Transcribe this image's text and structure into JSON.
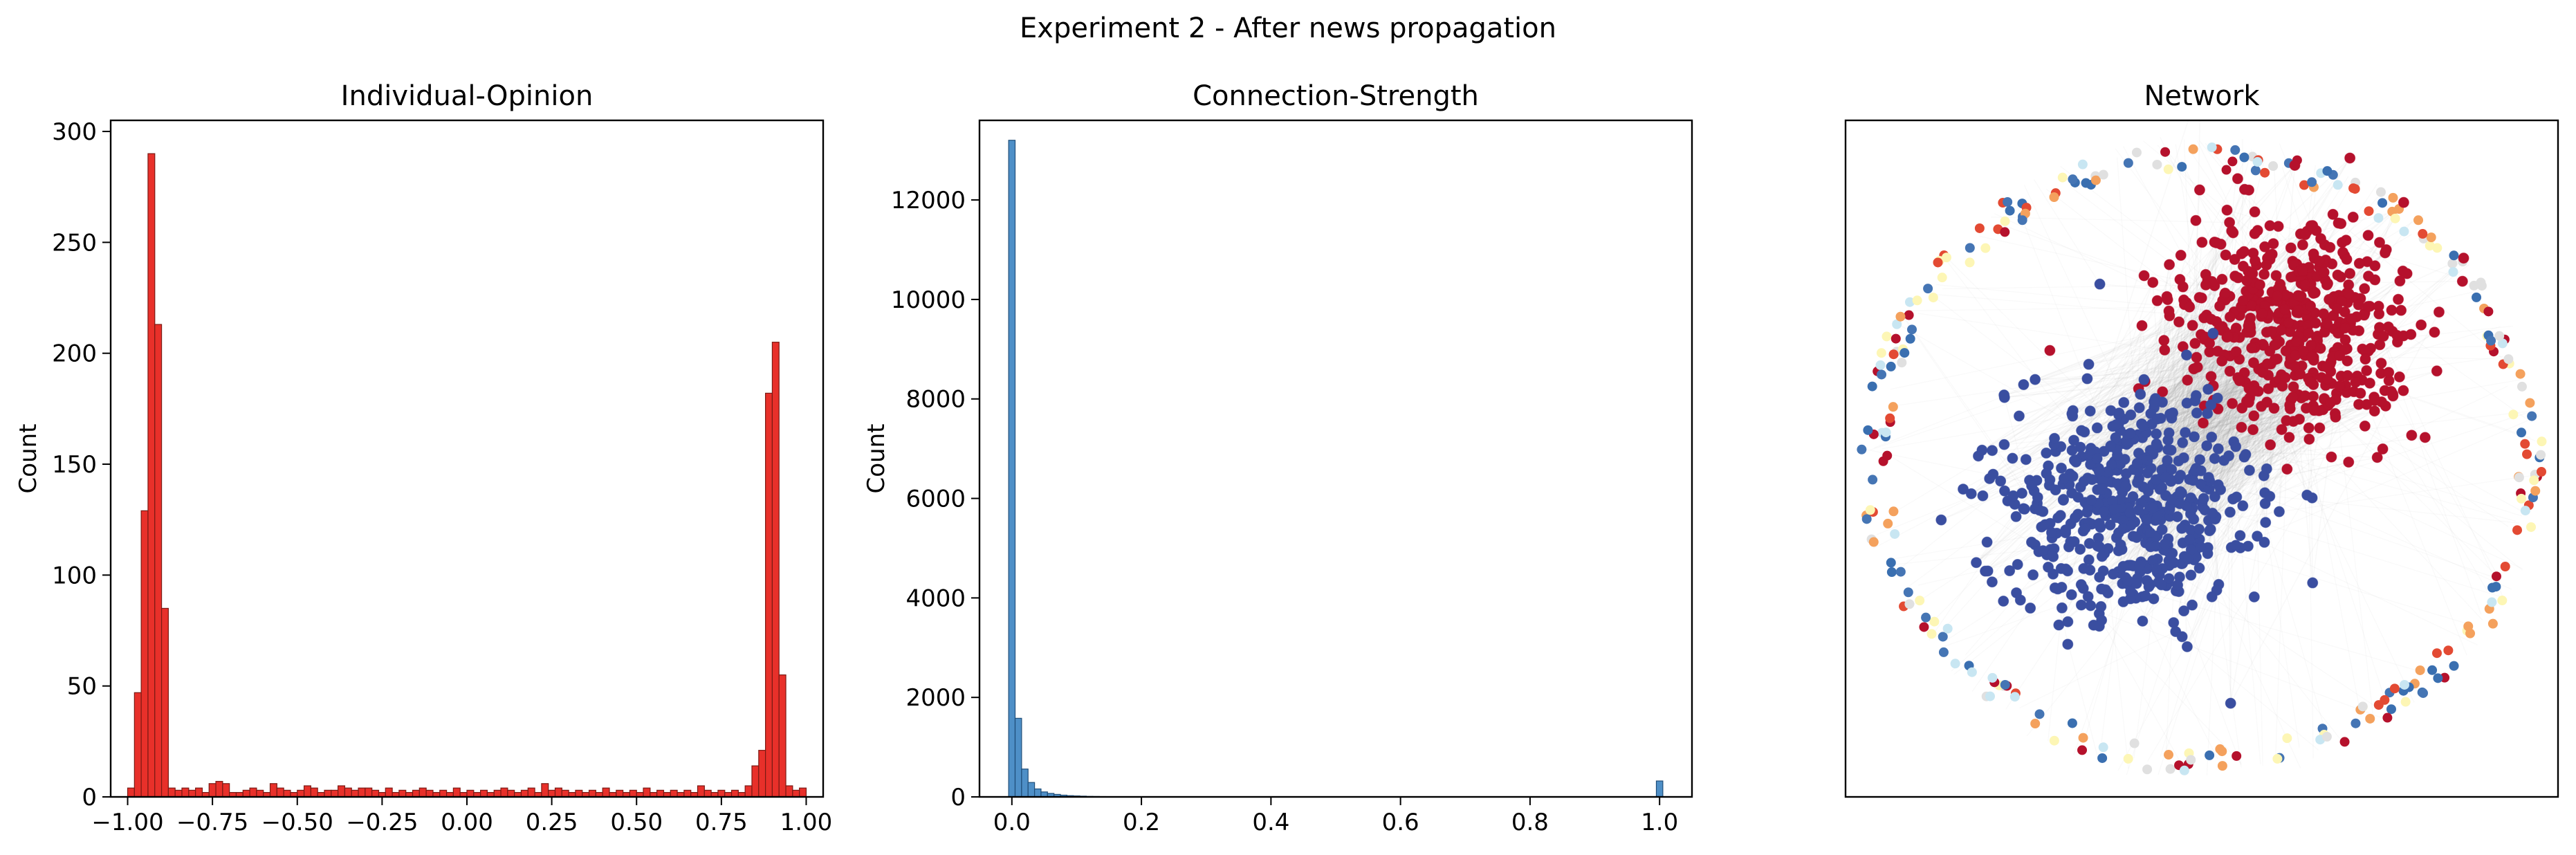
{
  "figure": {
    "suptitle": "Experiment 2 - After news propagation"
  },
  "chart_data": [
    {
      "type": "histogram",
      "title": "Individual-Opinion",
      "xlabel": "",
      "ylabel": "Count",
      "xlim": [
        -1.05,
        1.05
      ],
      "ylim": [
        0,
        305
      ],
      "xticks": [
        -1.0,
        -0.75,
        -0.5,
        -0.25,
        0.0,
        0.25,
        0.5,
        0.75,
        1.0
      ],
      "xtick_labels": [
        "−1.00",
        "−0.75",
        "−0.50",
        "−0.25",
        "0.00",
        "0.25",
        "0.50",
        "0.75",
        "1.00"
      ],
      "yticks": [
        0,
        50,
        100,
        150,
        200,
        250,
        300
      ],
      "ytick_labels": [
        "0",
        "50",
        "100",
        "150",
        "200",
        "250",
        "300"
      ],
      "bin_start": -1.0,
      "bin_width": 0.02,
      "counts": [
        4,
        47,
        129,
        290,
        213,
        85,
        4,
        3,
        4,
        3,
        4,
        2,
        6,
        7,
        6,
        2,
        2,
        3,
        4,
        3,
        2,
        6,
        4,
        3,
        2,
        3,
        5,
        4,
        2,
        3,
        3,
        5,
        4,
        3,
        4,
        4,
        3,
        2,
        4,
        2,
        3,
        2,
        3,
        4,
        3,
        2,
        3,
        2,
        4,
        2,
        3,
        2,
        3,
        2,
        3,
        4,
        3,
        2,
        3,
        4,
        2,
        6,
        3,
        4,
        3,
        2,
        3,
        2,
        3,
        2,
        4,
        2,
        3,
        2,
        3,
        2,
        4,
        2,
        3,
        2,
        3,
        2,
        3,
        2,
        5,
        3,
        2,
        3,
        2,
        3,
        2,
        5,
        14,
        21,
        182,
        205,
        55,
        5,
        3,
        4
      ],
      "bar_color": "#e8302a",
      "edge_color": "#7a1a14"
    },
    {
      "type": "histogram",
      "title": "Connection-Strength",
      "xlabel": "",
      "ylabel": "Count",
      "xlim": [
        -0.05,
        1.05
      ],
      "ylim": [
        0,
        13600
      ],
      "xticks": [
        0.0,
        0.2,
        0.4,
        0.6,
        0.8,
        1.0
      ],
      "xtick_labels": [
        "0.0",
        "0.2",
        "0.4",
        "0.6",
        "0.8",
        "1.0"
      ],
      "yticks": [
        0,
        2000,
        4000,
        6000,
        8000,
        10000,
        12000
      ],
      "ytick_labels": [
        "0",
        "2000",
        "4000",
        "6000",
        "8000",
        "10000",
        "12000"
      ],
      "bin_start": -0.005,
      "bin_width": 0.01,
      "counts": [
        13200,
        1580,
        560,
        290,
        160,
        100,
        70,
        50,
        35,
        25,
        20,
        15,
        10,
        8,
        6,
        5,
        4,
        3,
        3,
        2,
        2,
        2,
        1,
        1,
        1,
        1,
        1,
        1,
        1,
        1,
        1,
        1,
        1,
        1,
        1,
        1,
        1,
        1,
        1,
        1,
        1,
        1,
        1,
        1,
        1,
        1,
        1,
        1,
        1,
        1,
        1,
        1,
        1,
        1,
        1,
        1,
        1,
        1,
        1,
        1,
        1,
        1,
        1,
        1,
        1,
        1,
        1,
        1,
        1,
        1,
        1,
        1,
        1,
        1,
        1,
        1,
        1,
        1,
        1,
        1,
        1,
        1,
        1,
        1,
        1,
        1,
        1,
        1,
        1,
        1,
        1,
        1,
        1,
        1,
        1,
        1,
        1,
        1,
        1,
        1,
        320
      ],
      "bar_color": "#4e8fc7",
      "edge_color": "#1f4e79"
    },
    {
      "type": "scatter",
      "title": "Network",
      "xlabel": "",
      "ylabel": "",
      "description_axes": "no ticks",
      "clusters": [
        {
          "color": "#b5112c",
          "center": [
            0.63,
            0.3
          ],
          "count": 520,
          "spread": [
            0.085,
            0.085
          ]
        },
        {
          "color": "#3a4ea0",
          "center": [
            0.4,
            0.57
          ],
          "count": 560,
          "spread": [
            0.085,
            0.085
          ]
        }
      ],
      "ring": {
        "center": [
          0.5,
          0.5
        ],
        "radii": [
          0.44,
          0.48
        ],
        "count": 260,
        "colors": [
          "#b5112c",
          "#3a6fb0",
          "#f4a15d",
          "#c8e6f2",
          "#fdf6b5",
          "#e34a33",
          "#4575b4",
          "#e0e0e0"
        ]
      },
      "edge_color": "#8c8c8c"
    }
  ]
}
